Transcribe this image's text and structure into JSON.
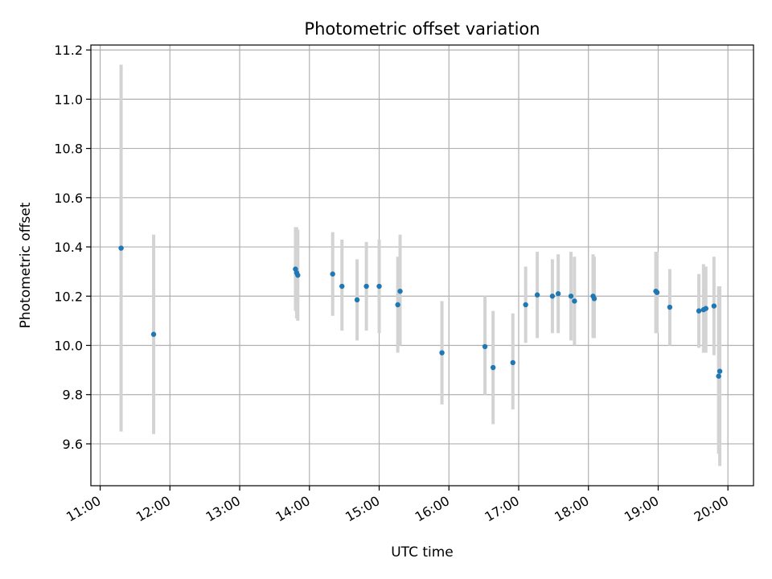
{
  "chart_data": {
    "type": "scatter",
    "title": "Photometric offset variation",
    "xlabel": "UTC time",
    "ylabel": "Photometric offset",
    "grid": true,
    "x_ticks": [
      "11:00",
      "12:00",
      "13:00",
      "14:00",
      "15:00",
      "16:00",
      "17:00",
      "18:00",
      "19:00",
      "20:00"
    ],
    "y_ticks": [
      "9.6",
      "9.8",
      "10.0",
      "10.2",
      "10.4",
      "10.6",
      "10.8",
      "11.0",
      "11.2"
    ],
    "xlim": [
      "10:52",
      "20:22"
    ],
    "ylim": [
      9.43,
      11.22
    ],
    "colors": {
      "point": "#1f77b4",
      "errorbar": "#d3d3d3",
      "grid": "#b0b0b0"
    },
    "points": [
      {
        "x": "11:18",
        "y": 10.395,
        "ylow": 9.65,
        "yhigh": 11.14
      },
      {
        "x": "11:46",
        "y": 10.045,
        "ylow": 9.64,
        "yhigh": 10.45
      },
      {
        "x": "13:48",
        "y": 10.31,
        "ylow": 10.14,
        "yhigh": 10.48
      },
      {
        "x": "13:49",
        "y": 10.295,
        "ylow": 10.11,
        "yhigh": 10.48
      },
      {
        "x": "13:50",
        "y": 10.285,
        "ylow": 10.1,
        "yhigh": 10.47
      },
      {
        "x": "14:20",
        "y": 10.29,
        "ylow": 10.12,
        "yhigh": 10.46
      },
      {
        "x": "14:28",
        "y": 10.24,
        "ylow": 10.06,
        "yhigh": 10.43
      },
      {
        "x": "14:41",
        "y": 10.185,
        "ylow": 10.02,
        "yhigh": 10.35
      },
      {
        "x": "14:49",
        "y": 10.24,
        "ylow": 10.06,
        "yhigh": 10.42
      },
      {
        "x": "15:00",
        "y": 10.24,
        "ylow": 10.05,
        "yhigh": 10.43
      },
      {
        "x": "15:16",
        "y": 10.165,
        "ylow": 9.97,
        "yhigh": 10.36
      },
      {
        "x": "15:18",
        "y": 10.22,
        "ylow": 10.0,
        "yhigh": 10.45
      },
      {
        "x": "15:54",
        "y": 9.97,
        "ylow": 9.76,
        "yhigh": 10.18
      },
      {
        "x": "16:31",
        "y": 9.995,
        "ylow": 9.8,
        "yhigh": 10.2
      },
      {
        "x": "16:38",
        "y": 9.91,
        "ylow": 9.68,
        "yhigh": 10.14
      },
      {
        "x": "16:55",
        "y": 9.93,
        "ylow": 9.74,
        "yhigh": 10.13
      },
      {
        "x": "17:06",
        "y": 10.165,
        "ylow": 10.01,
        "yhigh": 10.32
      },
      {
        "x": "17:16",
        "y": 10.205,
        "ylow": 10.03,
        "yhigh": 10.38
      },
      {
        "x": "17:29",
        "y": 10.2,
        "ylow": 10.05,
        "yhigh": 10.35
      },
      {
        "x": "17:34",
        "y": 10.21,
        "ylow": 10.05,
        "yhigh": 10.37
      },
      {
        "x": "17:45",
        "y": 10.2,
        "ylow": 10.02,
        "yhigh": 10.38
      },
      {
        "x": "17:48",
        "y": 10.18,
        "ylow": 10.0,
        "yhigh": 10.36
      },
      {
        "x": "18:04",
        "y": 10.2,
        "ylow": 10.03,
        "yhigh": 10.37
      },
      {
        "x": "18:05",
        "y": 10.19,
        "ylow": 10.03,
        "yhigh": 10.36
      },
      {
        "x": "18:58",
        "y": 10.22,
        "ylow": 10.05,
        "yhigh": 10.38
      },
      {
        "x": "18:59",
        "y": 10.215,
        "ylow": 10.05,
        "yhigh": 10.38
      },
      {
        "x": "19:10",
        "y": 10.155,
        "ylow": 10.0,
        "yhigh": 10.31
      },
      {
        "x": "19:35",
        "y": 10.14,
        "ylow": 9.99,
        "yhigh": 10.29
      },
      {
        "x": "19:39",
        "y": 10.145,
        "ylow": 9.97,
        "yhigh": 10.33
      },
      {
        "x": "19:41",
        "y": 10.15,
        "ylow": 9.97,
        "yhigh": 10.32
      },
      {
        "x": "19:48",
        "y": 10.16,
        "ylow": 9.96,
        "yhigh": 10.36
      },
      {
        "x": "19:52",
        "y": 9.875,
        "ylow": 9.56,
        "yhigh": 10.24
      },
      {
        "x": "19:53",
        "y": 9.895,
        "ylow": 9.51,
        "yhigh": 10.24
      }
    ]
  }
}
